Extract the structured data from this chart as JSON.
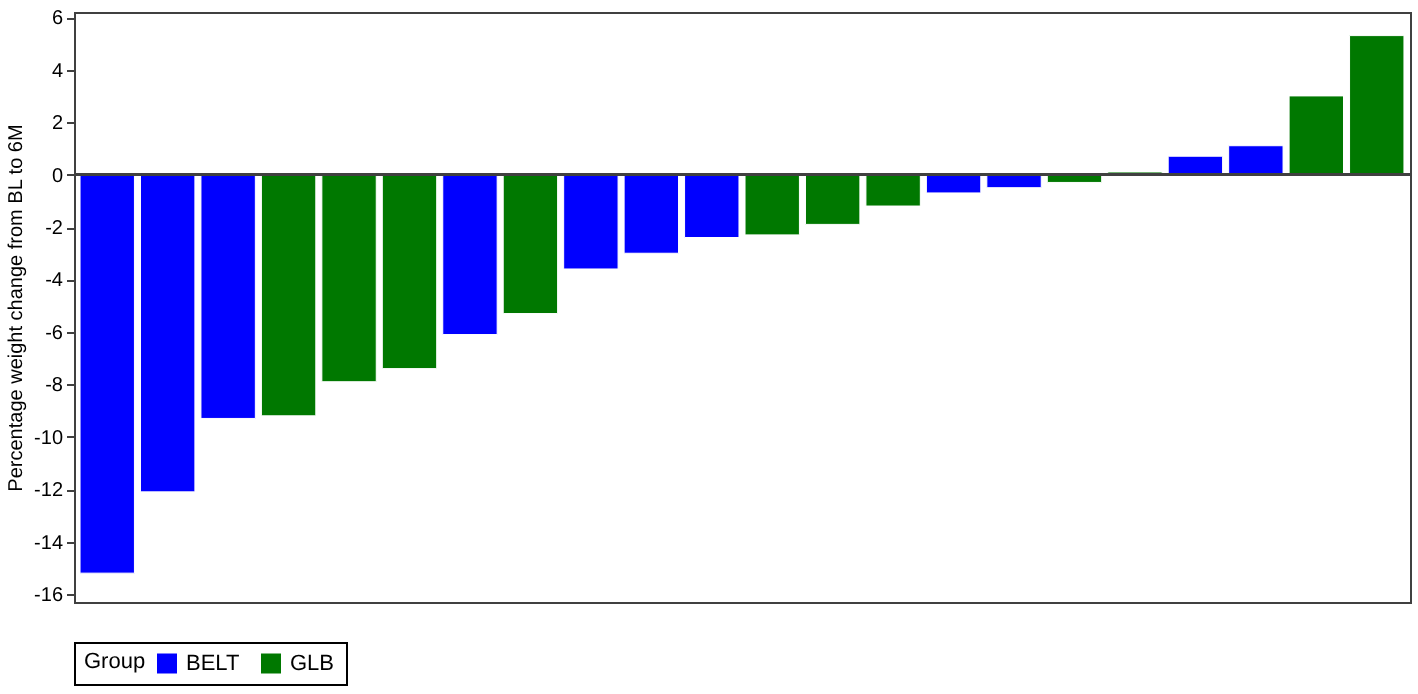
{
  "chart_data": {
    "type": "bar",
    "ylabel": "Percentage weight change from BL to 6M",
    "legend_title": "Group",
    "categories": [
      null,
      null,
      null,
      null,
      null,
      null,
      null,
      null,
      null,
      null,
      null,
      null,
      null,
      null,
      null,
      null,
      null,
      null,
      null,
      null,
      null,
      null
    ],
    "series": [
      {
        "name": "BELT",
        "color": "#0000ff",
        "values": [
          -15.2,
          -12.1,
          -9.3,
          null,
          null,
          null,
          -6.1,
          null,
          -3.6,
          -3.0,
          -2.4,
          null,
          null,
          null,
          -0.7,
          -0.5,
          null,
          null,
          0.7,
          1.1,
          null,
          null
        ]
      },
      {
        "name": "GLB",
        "color": "#007800",
        "values": [
          null,
          null,
          null,
          -9.2,
          -7.9,
          -7.4,
          null,
          -5.3,
          null,
          null,
          null,
          -2.3,
          -1.9,
          -1.2,
          null,
          null,
          -0.3,
          0.1,
          null,
          null,
          3.0,
          5.3
        ]
      }
    ],
    "ylim": [
      -16.3,
      6.2
    ],
    "yticks": [
      -16,
      -14,
      -12,
      -10,
      -8,
      -6,
      -4,
      -2,
      0,
      2,
      4,
      6
    ],
    "ref_lines": [
      {
        "axis": "y",
        "value": 0,
        "color": "#404040"
      }
    ],
    "grid": false,
    "legend": "bottom"
  }
}
